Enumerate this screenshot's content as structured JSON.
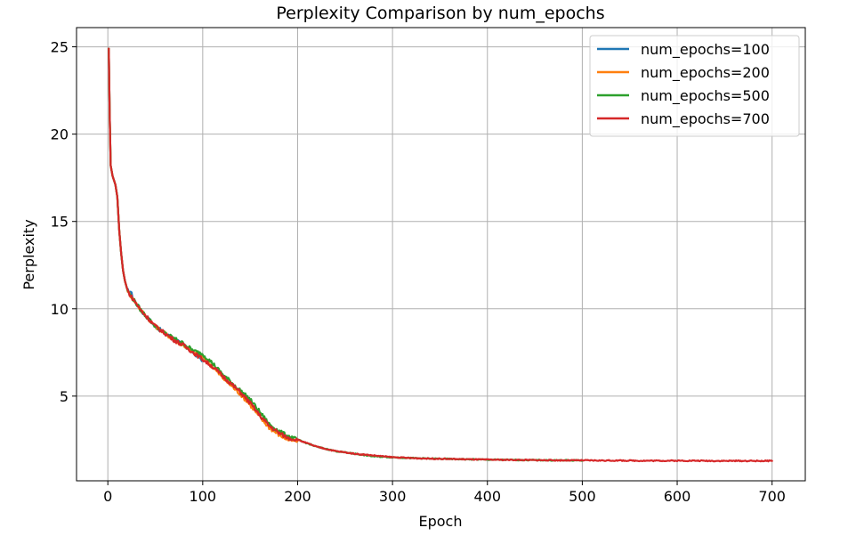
{
  "chart_data": {
    "type": "line",
    "title": "Perplexity Comparison by num_epochs",
    "xlabel": "Epoch",
    "ylabel": "Perplexity",
    "xlim": [
      -33,
      735
    ],
    "ylim": [
      0.15,
      26.1
    ],
    "xticks": [
      0,
      100,
      200,
      300,
      400,
      500,
      600,
      700
    ],
    "yticks": [
      5,
      10,
      15,
      20,
      25
    ],
    "grid": true,
    "legend_position": "upper-right",
    "series": [
      {
        "name": "num_epochs=100",
        "color": "#1f77b4",
        "points": [
          [
            1,
            24.9
          ],
          [
            2,
            21
          ],
          [
            3,
            18.2
          ],
          [
            5,
            17.6
          ],
          [
            8,
            17.1
          ],
          [
            10,
            16.4
          ],
          [
            12,
            14.5
          ],
          [
            14,
            13.2
          ],
          [
            16,
            12.2
          ],
          [
            18,
            11.6
          ],
          [
            20,
            11.2
          ],
          [
            22,
            10.9
          ],
          [
            24,
            11.0
          ],
          [
            26,
            10.7
          ],
          [
            30,
            10.3
          ],
          [
            35,
            9.9
          ],
          [
            40,
            9.6
          ],
          [
            45,
            9.3
          ],
          [
            50,
            9.0
          ],
          [
            60,
            8.6
          ],
          [
            70,
            8.25
          ],
          [
            80,
            7.9
          ],
          [
            90,
            7.5
          ],
          [
            100,
            7.05
          ]
        ]
      },
      {
        "name": "num_epochs=200",
        "color": "#ff7f0e",
        "points": [
          [
            1,
            24.9
          ],
          [
            2,
            21
          ],
          [
            3,
            18.2
          ],
          [
            5,
            17.6
          ],
          [
            8,
            17.1
          ],
          [
            10,
            16.4
          ],
          [
            12,
            14.5
          ],
          [
            14,
            13.2
          ],
          [
            16,
            12.2
          ],
          [
            18,
            11.6
          ],
          [
            20,
            11.2
          ],
          [
            22,
            10.9
          ],
          [
            26,
            10.6
          ],
          [
            30,
            10.3
          ],
          [
            35,
            9.9
          ],
          [
            40,
            9.6
          ],
          [
            45,
            9.3
          ],
          [
            50,
            9.0
          ],
          [
            60,
            8.6
          ],
          [
            70,
            8.2
          ],
          [
            80,
            7.9
          ],
          [
            90,
            7.5
          ],
          [
            100,
            7.2
          ],
          [
            110,
            6.7
          ],
          [
            120,
            6.1
          ],
          [
            130,
            5.6
          ],
          [
            140,
            5.1
          ],
          [
            150,
            4.5
          ],
          [
            160,
            3.8
          ],
          [
            170,
            3.2
          ],
          [
            180,
            2.8
          ],
          [
            190,
            2.5
          ],
          [
            200,
            2.4
          ]
        ]
      },
      {
        "name": "num_epochs=500",
        "color": "#2ca02c",
        "points": [
          [
            1,
            24.9
          ],
          [
            2,
            21
          ],
          [
            3,
            18.2
          ],
          [
            5,
            17.6
          ],
          [
            8,
            17.1
          ],
          [
            10,
            16.4
          ],
          [
            12,
            14.5
          ],
          [
            14,
            13.2
          ],
          [
            16,
            12.2
          ],
          [
            18,
            11.6
          ],
          [
            20,
            11.2
          ],
          [
            22,
            10.9
          ],
          [
            26,
            10.6
          ],
          [
            30,
            10.3
          ],
          [
            35,
            9.9
          ],
          [
            40,
            9.6
          ],
          [
            45,
            9.3
          ],
          [
            50,
            9.0
          ],
          [
            60,
            8.6
          ],
          [
            70,
            8.3
          ],
          [
            80,
            8.0
          ],
          [
            90,
            7.6
          ],
          [
            100,
            7.4
          ],
          [
            110,
            6.9
          ],
          [
            120,
            6.3
          ],
          [
            130,
            5.8
          ],
          [
            140,
            5.3
          ],
          [
            150,
            4.8
          ],
          [
            160,
            4.1
          ],
          [
            170,
            3.4
          ],
          [
            180,
            3.0
          ],
          [
            190,
            2.7
          ],
          [
            200,
            2.5
          ],
          [
            220,
            2.1
          ],
          [
            240,
            1.85
          ],
          [
            260,
            1.7
          ],
          [
            280,
            1.55
          ],
          [
            300,
            1.5
          ],
          [
            320,
            1.45
          ],
          [
            340,
            1.42
          ],
          [
            360,
            1.4
          ],
          [
            380,
            1.38
          ],
          [
            400,
            1.36
          ],
          [
            420,
            1.35
          ],
          [
            440,
            1.34
          ],
          [
            460,
            1.33
          ],
          [
            480,
            1.32
          ],
          [
            500,
            1.32
          ]
        ]
      },
      {
        "name": "num_epochs=700",
        "color": "#d62728",
        "points": [
          [
            1,
            24.9
          ],
          [
            2,
            21
          ],
          [
            3,
            18.2
          ],
          [
            5,
            17.6
          ],
          [
            8,
            17.1
          ],
          [
            10,
            16.4
          ],
          [
            12,
            14.5
          ],
          [
            14,
            13.2
          ],
          [
            16,
            12.2
          ],
          [
            18,
            11.6
          ],
          [
            20,
            11.2
          ],
          [
            22,
            10.9
          ],
          [
            26,
            10.6
          ],
          [
            30,
            10.3
          ],
          [
            35,
            9.9
          ],
          [
            40,
            9.6
          ],
          [
            45,
            9.3
          ],
          [
            50,
            9.0
          ],
          [
            60,
            8.6
          ],
          [
            70,
            8.2
          ],
          [
            80,
            7.9
          ],
          [
            90,
            7.5
          ],
          [
            100,
            7.1
          ],
          [
            110,
            6.7
          ],
          [
            120,
            6.2
          ],
          [
            130,
            5.7
          ],
          [
            140,
            5.2
          ],
          [
            150,
            4.6
          ],
          [
            160,
            3.9
          ],
          [
            170,
            3.3
          ],
          [
            180,
            2.9
          ],
          [
            190,
            2.6
          ],
          [
            200,
            2.5
          ],
          [
            220,
            2.1
          ],
          [
            240,
            1.85
          ],
          [
            260,
            1.7
          ],
          [
            280,
            1.6
          ],
          [
            300,
            1.5
          ],
          [
            320,
            1.45
          ],
          [
            340,
            1.42
          ],
          [
            360,
            1.4
          ],
          [
            380,
            1.38
          ],
          [
            400,
            1.36
          ],
          [
            420,
            1.35
          ],
          [
            440,
            1.34
          ],
          [
            460,
            1.33
          ],
          [
            480,
            1.32
          ],
          [
            500,
            1.32
          ],
          [
            520,
            1.31
          ],
          [
            540,
            1.31
          ],
          [
            560,
            1.3
          ],
          [
            580,
            1.3
          ],
          [
            600,
            1.3
          ],
          [
            620,
            1.3
          ],
          [
            640,
            1.29
          ],
          [
            660,
            1.29
          ],
          [
            680,
            1.29
          ],
          [
            700,
            1.29
          ]
        ]
      }
    ]
  }
}
